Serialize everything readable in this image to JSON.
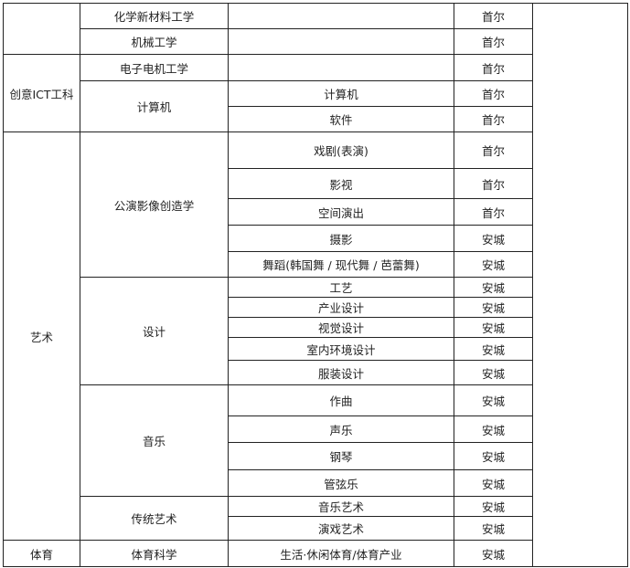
{
  "groups": {
    "g0": "",
    "g1": "创意ICT工科",
    "g2": "艺术",
    "g3": "体育"
  },
  "depts": {
    "d1": "化学新材料工学",
    "d2": "机械工学",
    "d3": "电子电机工学",
    "d4": "计算机",
    "d5": "公演影像创造学",
    "d6": "设计",
    "d7": "音乐",
    "d8": "传统艺术",
    "d9": "体育科学"
  },
  "majors": [
    "",
    "",
    "",
    "计算机",
    "软件",
    "戏剧(表演)",
    "影视",
    "空间演出",
    "摄影",
    "舞蹈(韩国舞 / 现代舞 / 芭蕾舞)",
    "工艺",
    "产业设计",
    "视觉设计",
    "室内环境设计",
    "服装设计",
    "作曲",
    "声乐",
    "钢琴",
    "管弦乐",
    "音乐艺术",
    "演戏艺术",
    "生活·休闲体育/体育产业"
  ],
  "campus": [
    "首尔",
    "首尔",
    "首尔",
    "首尔",
    "首尔",
    "首尔",
    "首尔",
    "首尔",
    "安城",
    "安城",
    "安城",
    "安城",
    "安城",
    "安城",
    "安城",
    "安城",
    "安城",
    "安城",
    "安城",
    "安城",
    "安城",
    "安城"
  ]
}
